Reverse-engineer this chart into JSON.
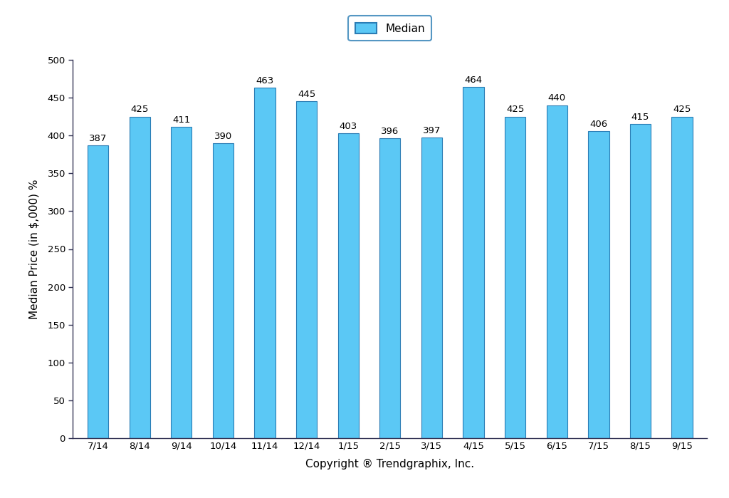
{
  "categories": [
    "7/14",
    "8/14",
    "9/14",
    "10/14",
    "11/14",
    "12/14",
    "1/15",
    "2/15",
    "3/15",
    "4/15",
    "5/15",
    "6/15",
    "7/15",
    "8/15",
    "9/15"
  ],
  "values": [
    387,
    425,
    411,
    390,
    463,
    445,
    403,
    396,
    397,
    464,
    425,
    440,
    406,
    415,
    425
  ],
  "bar_color": "#5BC8F5",
  "bar_edge_color": "#2B7DB5",
  "ylim": [
    0,
    500
  ],
  "yticks": [
    0,
    50,
    100,
    150,
    200,
    250,
    300,
    350,
    400,
    450,
    500
  ],
  "ylabel": "Median Price (in $,000) %",
  "xlabel": "Copyright ® Trendgraphix, Inc.",
  "legend_label": "Median",
  "legend_facecolor": "#5BC8F5",
  "legend_edgecolor": "#2B7DB5",
  "background_color": "#FFFFFF",
  "bar_label_fontsize": 9.5,
  "axis_label_fontsize": 11,
  "tick_fontsize": 9.5,
  "legend_fontsize": 11,
  "spine_color": "#333355",
  "bar_width": 0.5
}
